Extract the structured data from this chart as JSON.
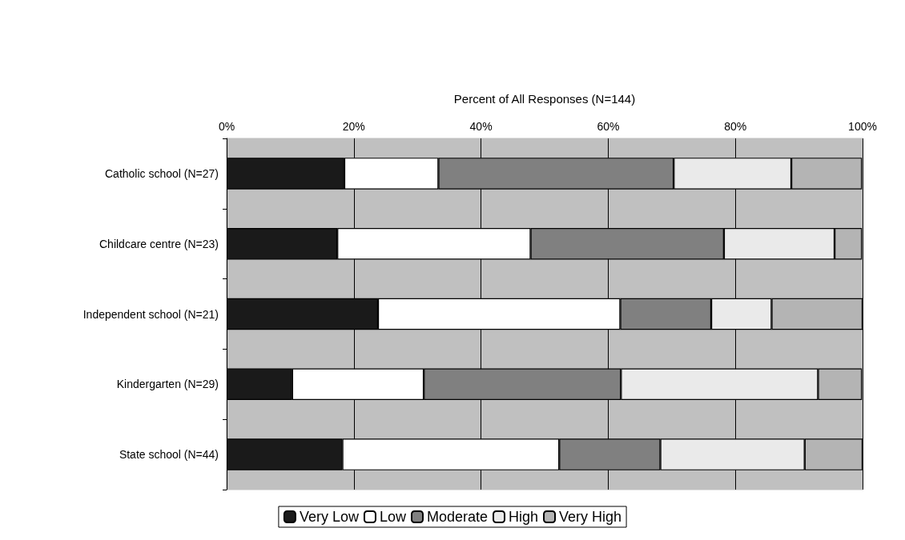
{
  "chart_data": {
    "type": "bar",
    "orientation": "horizontal",
    "stacked": true,
    "xlabel": "Percent of All Responses (N=144)",
    "categories": [
      "Catholic school (N=27)",
      "Childcare centre (N=23)",
      "Independent school (N=21)",
      "Kindergarten (N=29)",
      "State school (N=44)"
    ],
    "series": [
      {
        "name": "Very Low",
        "color": "#1a1a1a",
        "values": [
          18.5,
          17.4,
          23.8,
          10.3,
          18.2
        ]
      },
      {
        "name": "Low",
        "color": "#ffffff",
        "values": [
          14.8,
          30.4,
          38.1,
          20.7,
          34.1
        ]
      },
      {
        "name": "Moderate",
        "color": "#808080",
        "values": [
          37.0,
          30.4,
          14.3,
          31.0,
          15.9
        ]
      },
      {
        "name": "High",
        "color": "#eaeaea",
        "values": [
          18.5,
          17.4,
          9.5,
          31.0,
          22.7
        ]
      },
      {
        "name": "Very High",
        "color": "#b4b4b4",
        "values": [
          11.1,
          4.3,
          14.3,
          6.9,
          9.1
        ]
      }
    ],
    "xlim": [
      0,
      100
    ],
    "xticks": [
      {
        "value": 0,
        "label": "0%"
      },
      {
        "value": 20,
        "label": "20%"
      },
      {
        "value": 40,
        "label": "40%"
      },
      {
        "value": 60,
        "label": "60%"
      },
      {
        "value": 80,
        "label": "80%"
      },
      {
        "value": 100,
        "label": "100%"
      }
    ],
    "grid": "x",
    "legend": "bottom"
  }
}
